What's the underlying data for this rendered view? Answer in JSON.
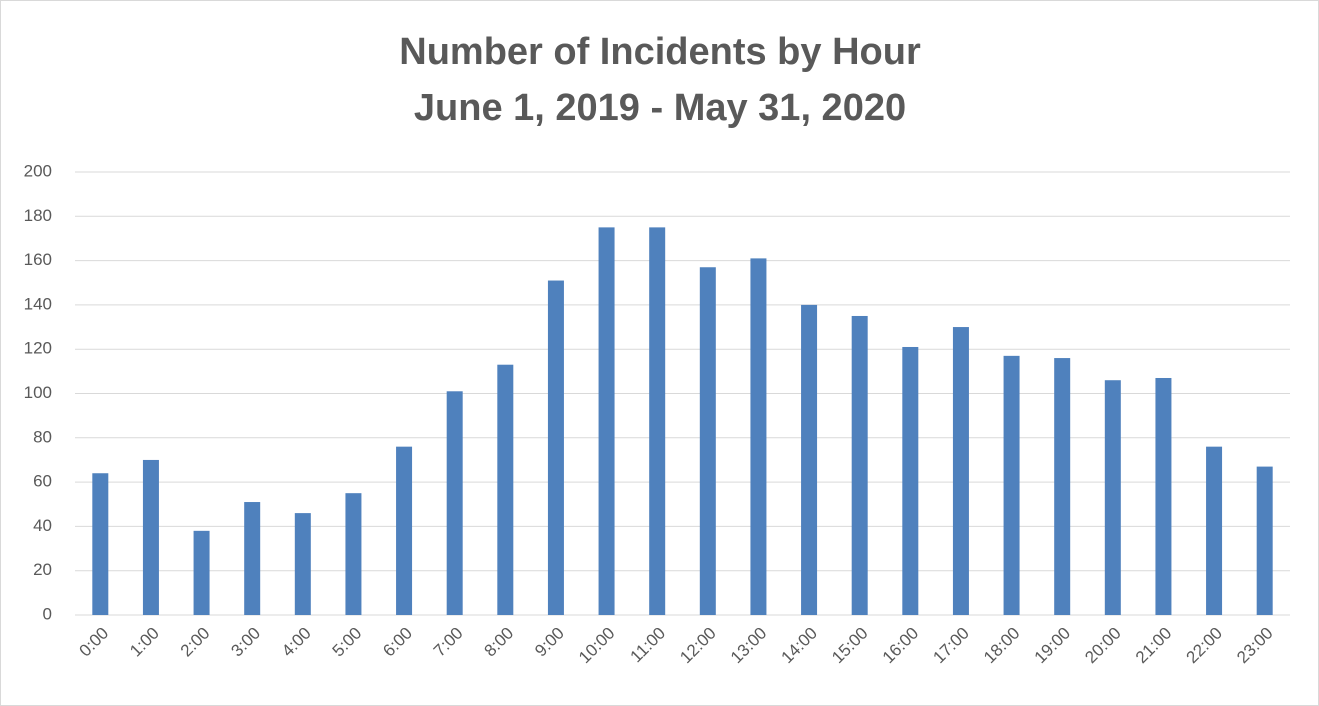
{
  "chart_data": {
    "type": "bar",
    "title": "Number of Incidents by Hour",
    "subtitle": "June 1, 2019 - May 31, 2020",
    "categories": [
      "0:00",
      "1:00",
      "2:00",
      "3:00",
      "4:00",
      "5:00",
      "6:00",
      "7:00",
      "8:00",
      "9:00",
      "10:00",
      "11:00",
      "12:00",
      "13:00",
      "14:00",
      "15:00",
      "16:00",
      "17:00",
      "18:00",
      "19:00",
      "20:00",
      "21:00",
      "22:00",
      "23:00"
    ],
    "values": [
      64,
      70,
      38,
      51,
      46,
      55,
      76,
      101,
      113,
      151,
      175,
      175,
      157,
      161,
      140,
      135,
      121,
      130,
      117,
      116,
      106,
      107,
      76,
      67
    ],
    "color": "#4f81bd",
    "ylim": [
      0,
      200
    ],
    "yticks": [
      0,
      20,
      40,
      60,
      80,
      100,
      120,
      140,
      160,
      180,
      200
    ],
    "grid": true
  }
}
